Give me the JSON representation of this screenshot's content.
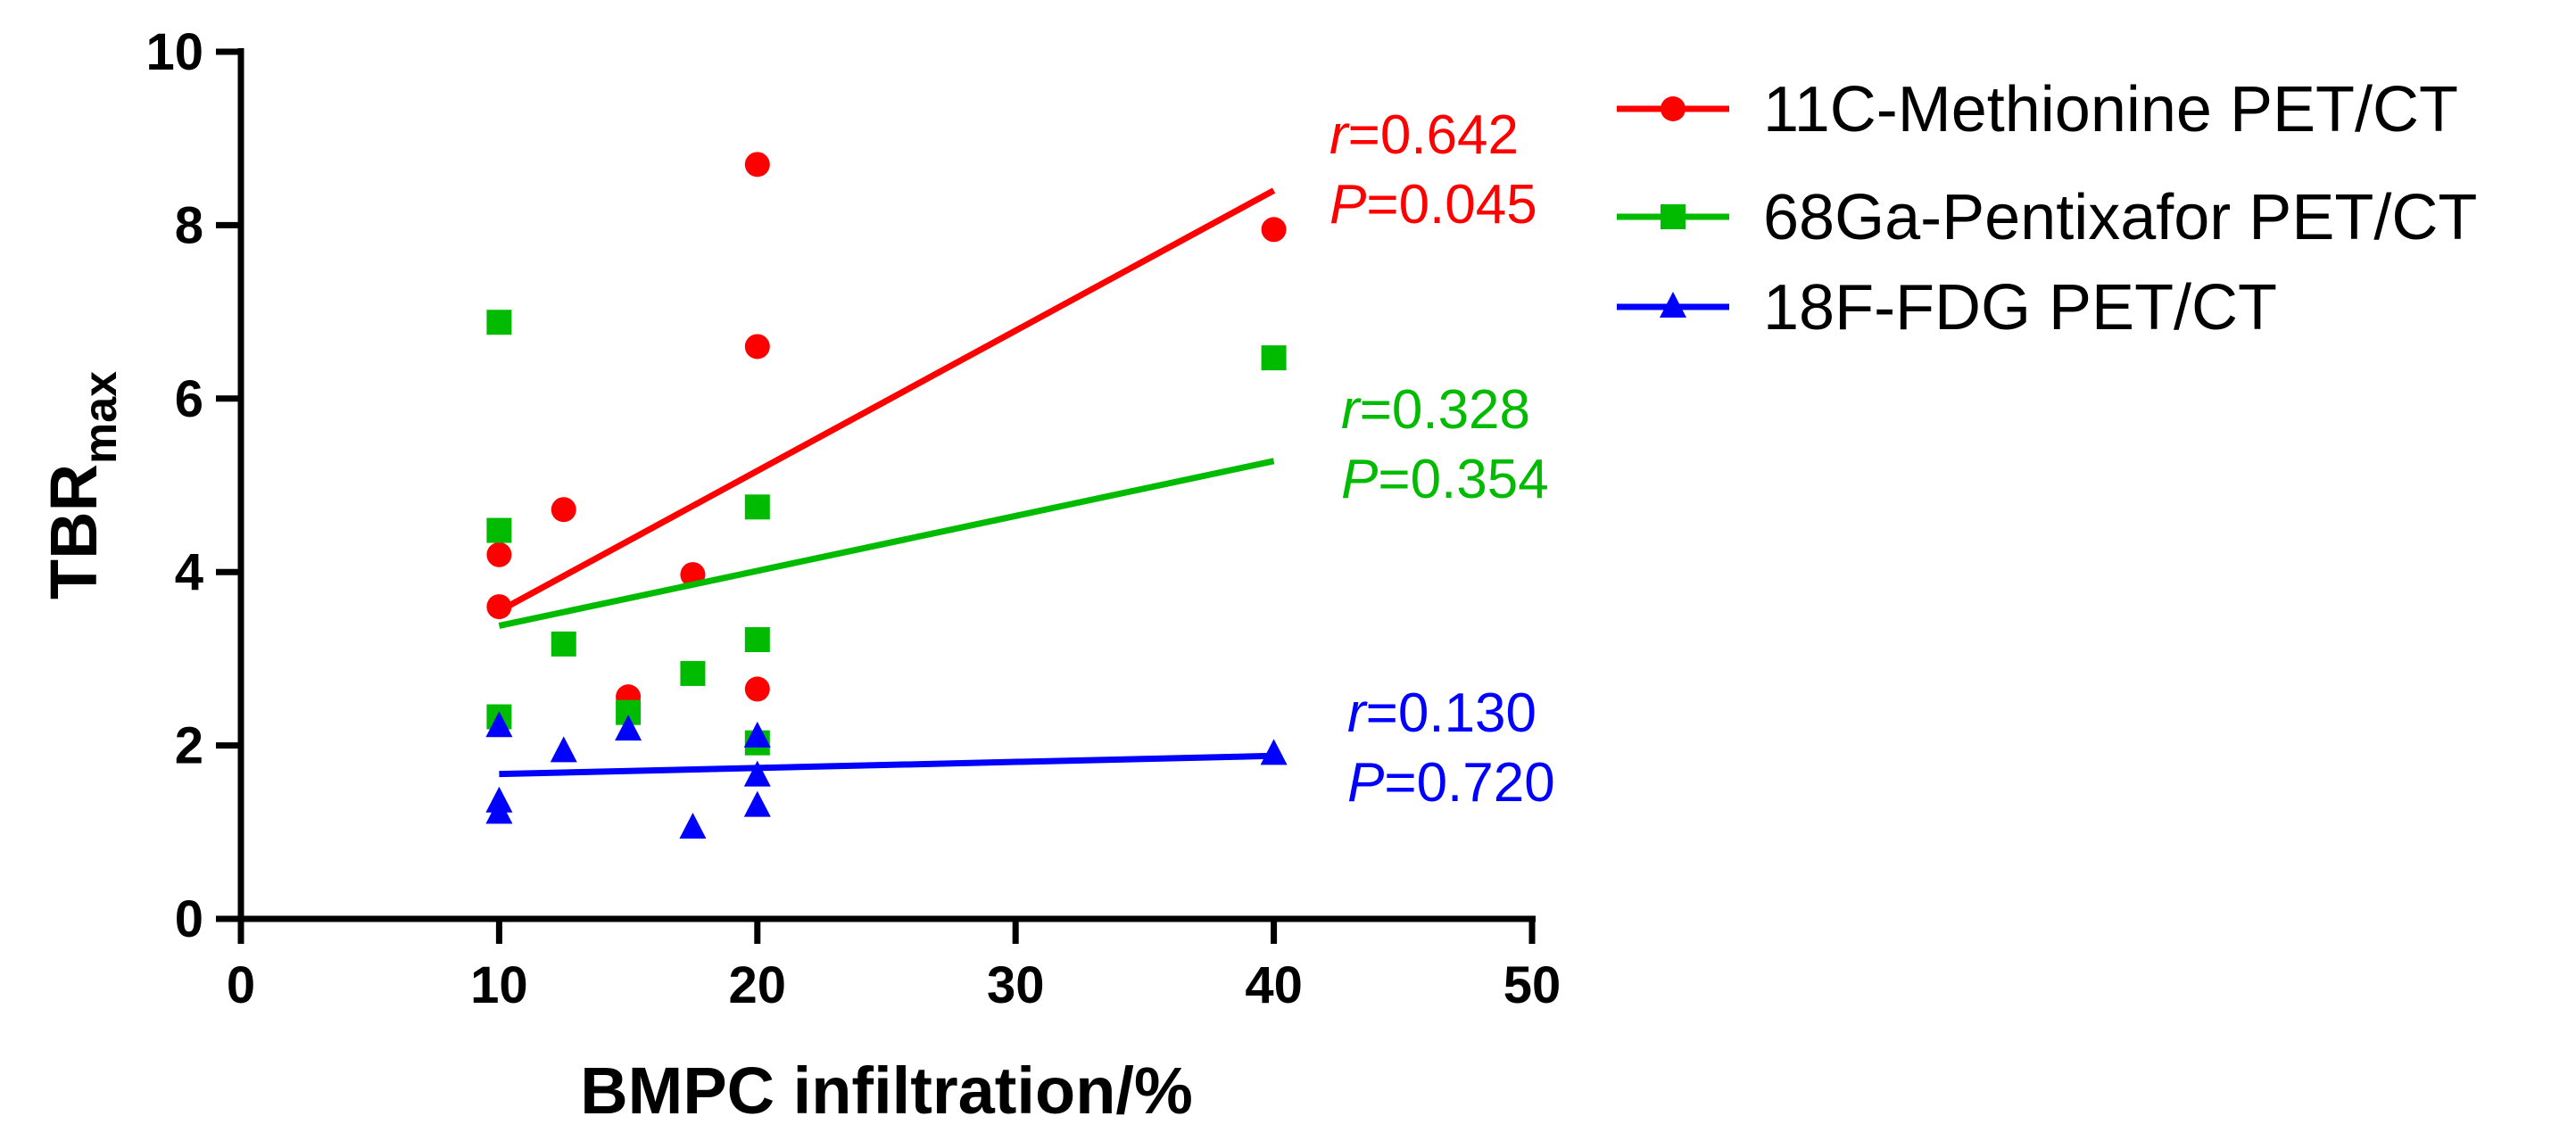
{
  "chart_data": {
    "type": "scatter",
    "xlabel": "BMPC infiltration/%",
    "ylabel_main": "TBR",
    "ylabel_sub": "max",
    "xlim": [
      0,
      50
    ],
    "ylim": [
      0,
      10
    ],
    "xticks": [
      "0",
      "10",
      "20",
      "30",
      "40",
      "50"
    ],
    "yticks": [
      "0",
      "2",
      "4",
      "6",
      "8",
      "10"
    ],
    "grid": false,
    "legend_position": "top-right",
    "series": [
      {
        "name": "11C-Methionine PET/CT",
        "color": "#ff0000",
        "marker": "circle",
        "points": [
          {
            "x": 10,
            "y": 4.2
          },
          {
            "x": 10,
            "y": 3.6
          },
          {
            "x": 12.5,
            "y": 4.72
          },
          {
            "x": 15,
            "y": 2.56
          },
          {
            "x": 17.5,
            "y": 3.97
          },
          {
            "x": 20,
            "y": 8.7
          },
          {
            "x": 20,
            "y": 6.6
          },
          {
            "x": 20,
            "y": 2.65
          },
          {
            "x": 40,
            "y": 7.95
          }
        ],
        "fit": {
          "x1": 10,
          "y1": 3.55,
          "x2": 40,
          "y2": 8.4
        },
        "r_label": "r",
        "r_value": "=0.642",
        "p_label": "P",
        "p_value": "=0.045"
      },
      {
        "name": "68Ga-Pentixafor PET/CT",
        "color": "#00bb00",
        "marker": "square",
        "points": [
          {
            "x": 10,
            "y": 6.88
          },
          {
            "x": 10,
            "y": 4.48
          },
          {
            "x": 10,
            "y": 2.33
          },
          {
            "x": 12.5,
            "y": 3.17
          },
          {
            "x": 15,
            "y": 2.38
          },
          {
            "x": 17.5,
            "y": 2.83
          },
          {
            "x": 20,
            "y": 4.75
          },
          {
            "x": 20,
            "y": 3.22
          },
          {
            "x": 20,
            "y": 2.03
          },
          {
            "x": 40,
            "y": 6.47
          }
        ],
        "fit": {
          "x1": 10,
          "y1": 3.38,
          "x2": 40,
          "y2": 5.28
        },
        "r_label": "r",
        "r_value": "=0.328",
        "p_label": "P",
        "p_value": "=0.354"
      },
      {
        "name": "18F-FDG PET/CT",
        "color": "#0000ff",
        "marker": "triangle",
        "points": [
          {
            "x": 10,
            "y": 2.22
          },
          {
            "x": 10,
            "y": 1.35
          },
          {
            "x": 10,
            "y": 1.22
          },
          {
            "x": 12.5,
            "y": 1.93
          },
          {
            "x": 15,
            "y": 2.18
          },
          {
            "x": 17.5,
            "y": 1.05
          },
          {
            "x": 20,
            "y": 2.1
          },
          {
            "x": 20,
            "y": 1.65
          },
          {
            "x": 20,
            "y": 1.3
          },
          {
            "x": 40,
            "y": 1.9
          }
        ],
        "fit": {
          "x1": 10,
          "y1": 1.67,
          "x2": 40,
          "y2": 1.88
        },
        "r_label": "r",
        "r_value": "=0.130",
        "p_label": "P",
        "p_value": "=0.720"
      }
    ]
  }
}
